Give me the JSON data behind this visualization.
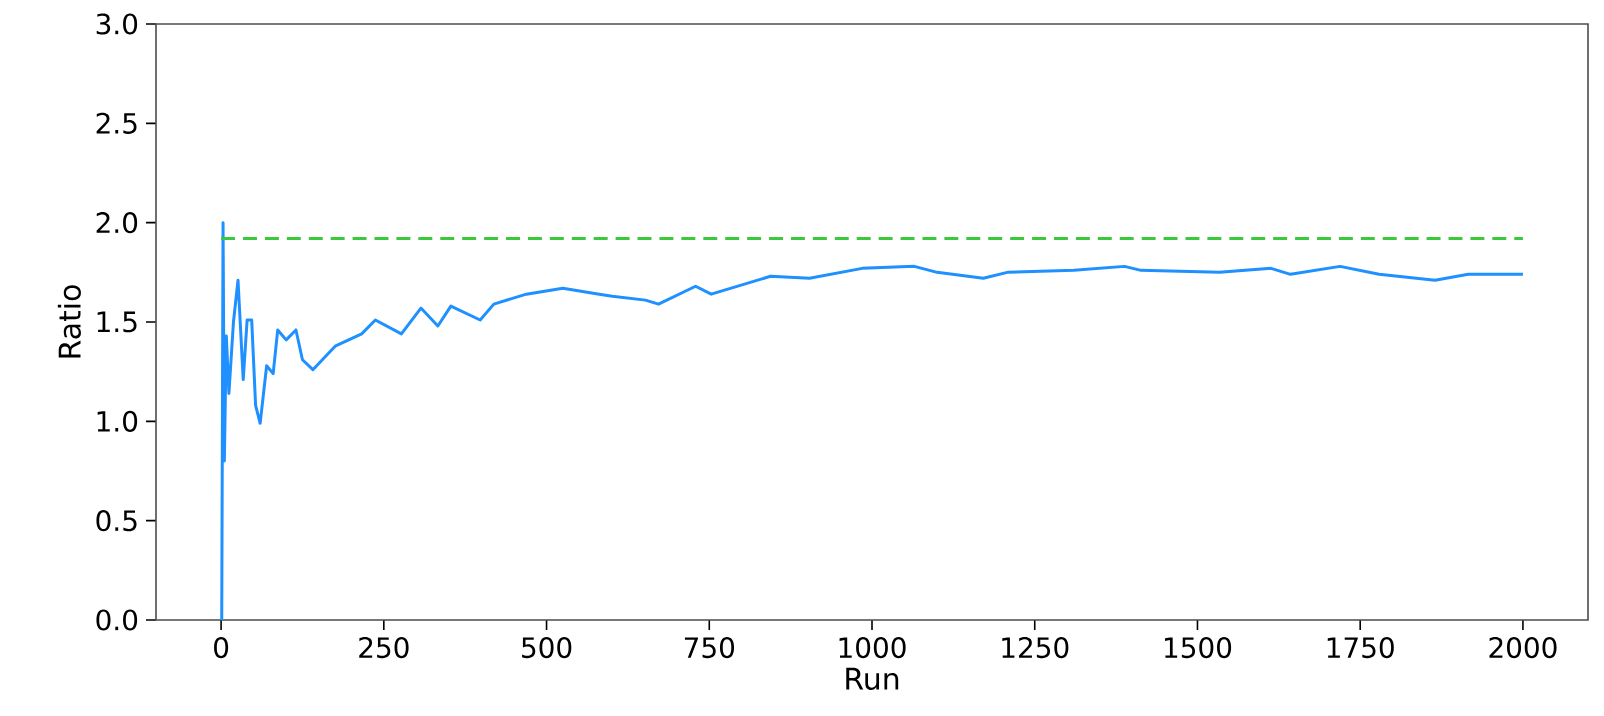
{
  "chart_data": {
    "type": "line",
    "xlabel": "Run",
    "ylabel": "Ratio",
    "xlim": [
      -100,
      2100
    ],
    "ylim": [
      0,
      3
    ],
    "xticks": [
      0,
      250,
      500,
      750,
      1000,
      1250,
      1500,
      1750,
      2000
    ],
    "yticks": [
      {
        "value": 0,
        "label": "0.0"
      },
      {
        "value": 0.5,
        "label": "0.5"
      },
      {
        "value": 1,
        "label": "1.0"
      },
      {
        "value": 1.5,
        "label": "1.5"
      },
      {
        "value": 2,
        "label": "2.0"
      },
      {
        "value": 2.5,
        "label": "2.5"
      },
      {
        "value": 3,
        "label": "3.0"
      }
    ],
    "series": [
      {
        "color": "#1e90ff",
        "line_style": "solid",
        "x": [
          1,
          3,
          5,
          8,
          12,
          19,
          26,
          34,
          40,
          47,
          53,
          60,
          70,
          80,
          87,
          100,
          115,
          125,
          141,
          176,
          216,
          237,
          277,
          307,
          333,
          353,
          398,
          419,
          469,
          525,
          581,
          601,
          652,
          672,
          729,
          753,
          844,
          904,
          985,
          1065,
          1100,
          1171,
          1208,
          1310,
          1388,
          1413,
          1534,
          1613,
          1643,
          1719,
          1779,
          1865,
          1916,
          2000
        ],
        "values": [
          0.0,
          2.0,
          0.8,
          1.43,
          1.14,
          1.5,
          1.71,
          1.21,
          1.51,
          1.51,
          1.08,
          0.99,
          1.28,
          1.24,
          1.46,
          1.41,
          1.46,
          1.31,
          1.26,
          1.38,
          1.44,
          1.51,
          1.44,
          1.57,
          1.48,
          1.58,
          1.51,
          1.59,
          1.64,
          1.67,
          1.64,
          1.63,
          1.61,
          1.59,
          1.68,
          1.64,
          1.73,
          1.72,
          1.77,
          1.78,
          1.75,
          1.72,
          1.75,
          1.76,
          1.78,
          1.76,
          1.75,
          1.77,
          1.74,
          1.78,
          1.74,
          1.71,
          1.74,
          1.74
        ]
      },
      {
        "color": "#3cc83c",
        "line_style": "dashed",
        "x": [
          0,
          2000
        ],
        "values": [
          1.92,
          1.92
        ]
      }
    ]
  }
}
